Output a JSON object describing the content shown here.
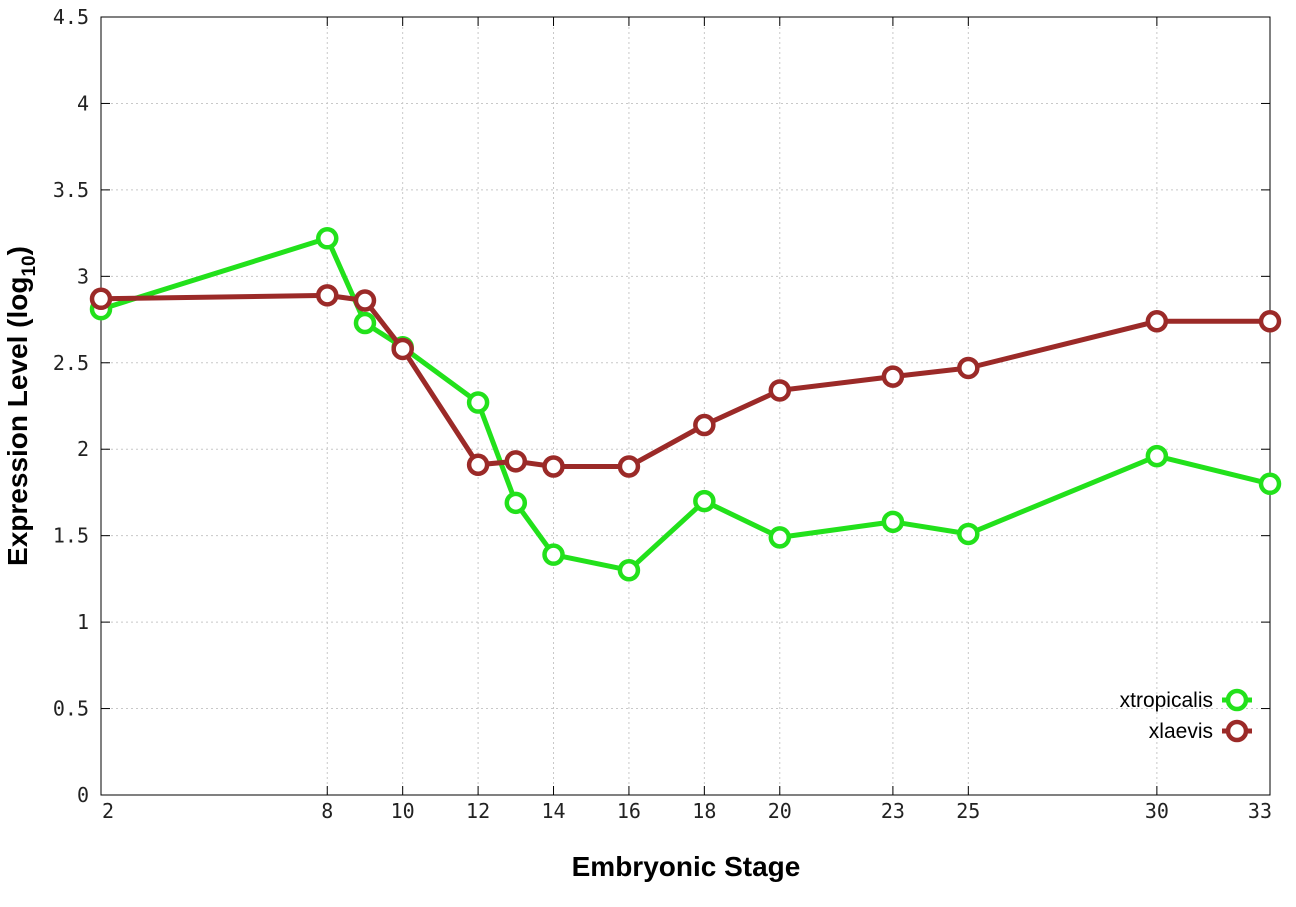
{
  "chart_data": {
    "type": "line",
    "title": "",
    "xlabel": "Embryonic Stage",
    "ylabel": "Expression Level (log",
    "ylabel_subscript": "10",
    "ylabel_suffix": ")",
    "x_ticks": [
      2,
      8,
      10,
      12,
      14,
      16,
      18,
      20,
      23,
      25,
      30,
      33
    ],
    "x_tick_labels": [
      "2",
      "8",
      "10",
      "12",
      "14",
      "16",
      "18",
      "20",
      "23",
      "25",
      "30",
      "33"
    ],
    "y_ticks": [
      0,
      0.5,
      1,
      1.5,
      2,
      2.5,
      3,
      3.5,
      4,
      4.5
    ],
    "y_tick_labels": [
      "0",
      "0.5",
      "1",
      "1.5",
      "2",
      "2.5",
      "3",
      "3.5",
      "4",
      "4.5"
    ],
    "ylim": [
      0,
      4.5
    ],
    "grid": true,
    "legend_position": "bottom-right",
    "x": [
      2,
      8,
      9,
      10,
      12,
      13,
      14,
      16,
      18,
      20,
      23,
      25,
      30,
      33
    ],
    "series": [
      {
        "name": "xtropicalis",
        "color": "#22e11b",
        "values": [
          2.81,
          3.22,
          2.73,
          2.59,
          2.27,
          1.69,
          1.39,
          1.3,
          1.7,
          1.49,
          1.58,
          1.51,
          1.96,
          1.8
        ]
      },
      {
        "name": "xlaevis",
        "color": "#9b2a28",
        "values": [
          2.87,
          2.89,
          2.86,
          2.58,
          1.91,
          1.93,
          1.9,
          1.9,
          2.14,
          2.34,
          2.42,
          2.47,
          2.74,
          2.74
        ]
      }
    ]
  }
}
